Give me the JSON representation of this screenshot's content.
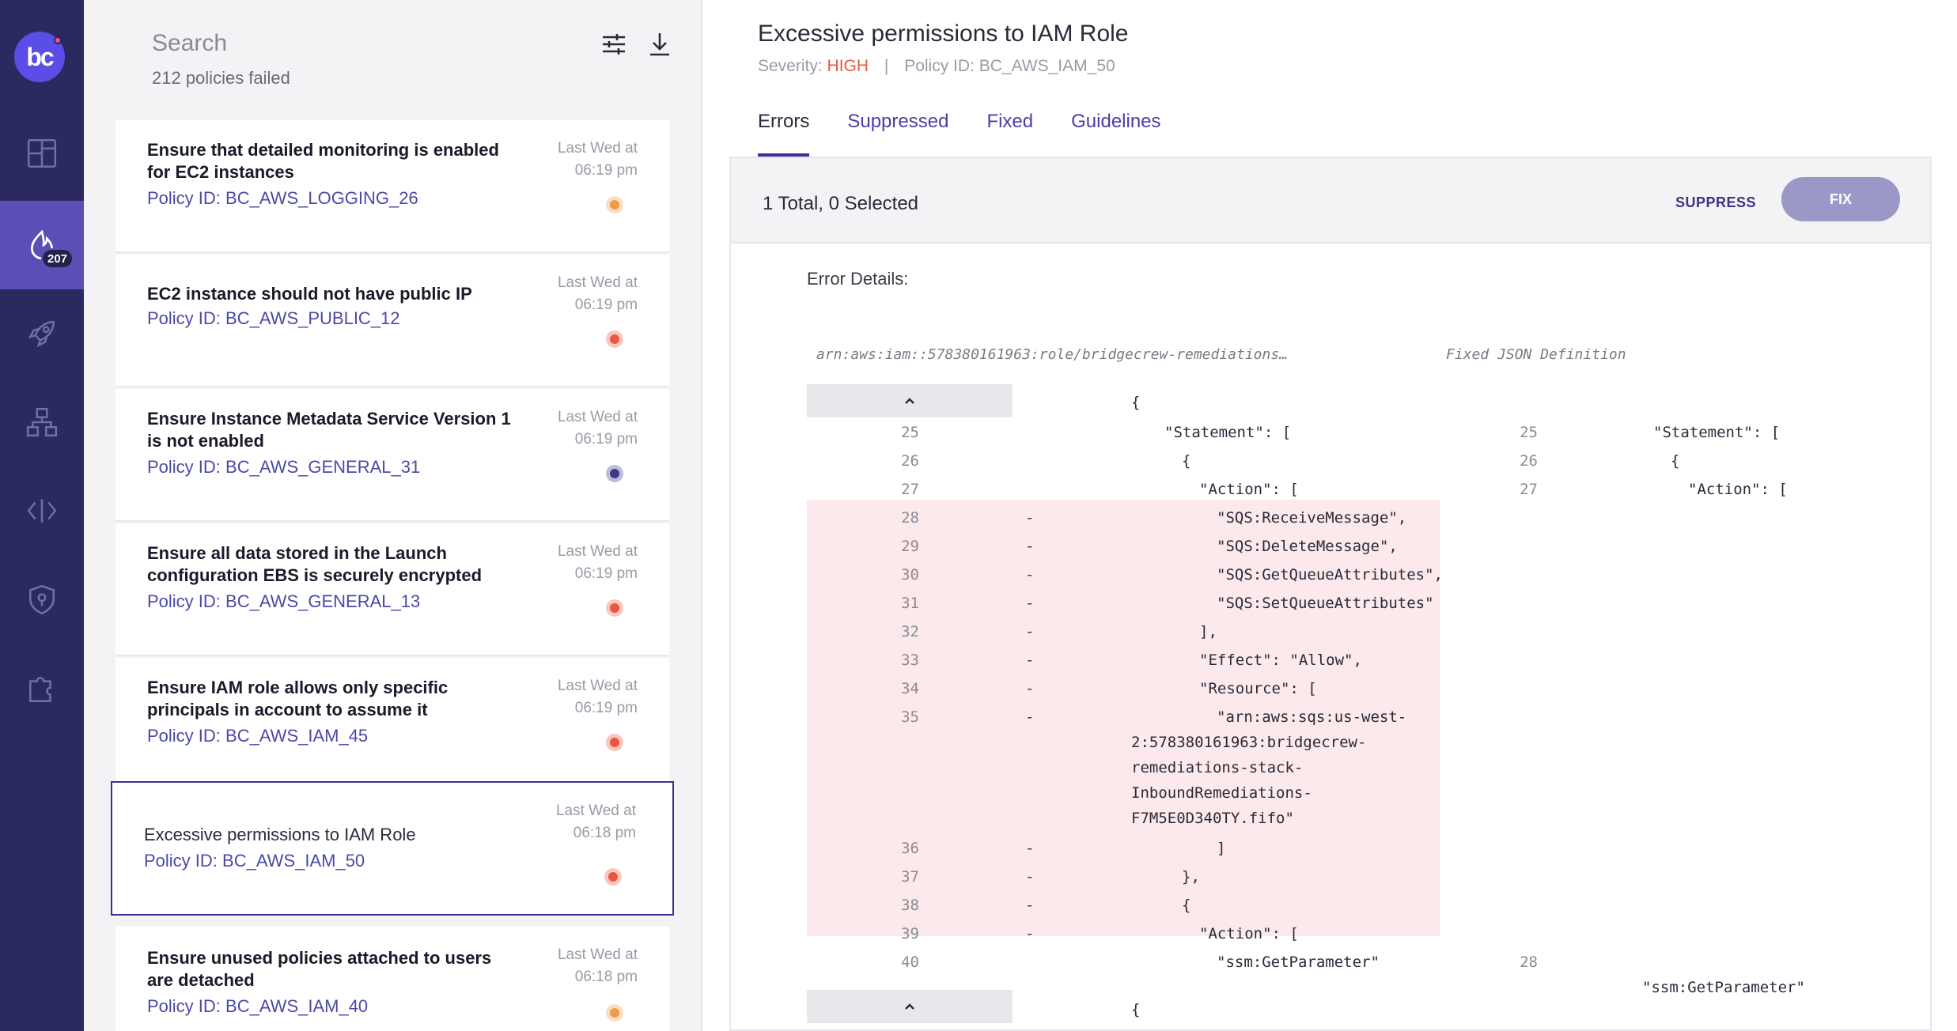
{
  "sidebar": {
    "logo_text": "bc",
    "badge": "207",
    "items": [
      {
        "name": "dashboard-icon"
      },
      {
        "name": "incidents-icon",
        "active": true
      },
      {
        "name": "rocket-icon"
      },
      {
        "name": "hierarchy-icon"
      },
      {
        "name": "code-icon"
      },
      {
        "name": "shield-icon"
      },
      {
        "name": "puzzle-icon"
      }
    ]
  },
  "list": {
    "search_placeholder": "Search",
    "count": "212 policies failed",
    "cards": [
      {
        "title": "Ensure that detailed monitoring is enabled for EC2 instances",
        "policy": "Policy ID: BC_AWS_LOGGING_26",
        "time1": "Last Wed at",
        "time2": "06:19 pm",
        "severity_color": "#f19a4b"
      },
      {
        "title": "EC2 instance should not have public IP",
        "policy": "Policy ID: BC_AWS_PUBLIC_12",
        "time1": "Last Wed at",
        "time2": "06:19 pm",
        "severity_color": "#e9573f"
      },
      {
        "title": "Ensure Instance Metadata Service Version 1 is not enabled",
        "policy": "Policy ID: BC_AWS_GENERAL_31",
        "time1": "Last Wed at",
        "time2": "06:19 pm",
        "severity_color": "#3b3a8c"
      },
      {
        "title": "Ensure all data stored in the Launch configuration EBS is securely encrypted",
        "policy": "Policy ID: BC_AWS_GENERAL_13",
        "time1": "Last Wed at",
        "time2": "06:19 pm",
        "severity_color": "#e9573f"
      },
      {
        "title": "Ensure IAM role allows only specific principals in account to assume it",
        "policy": "Policy ID: BC_AWS_IAM_45",
        "time1": "Last Wed at",
        "time2": "06:19 pm",
        "severity_color": "#e9573f"
      },
      {
        "title": "Excessive permissions to IAM Role",
        "policy": "Policy ID: BC_AWS_IAM_50",
        "time1": "Last Wed at",
        "time2": "06:18 pm",
        "severity_color": "#e9573f",
        "selected": true
      },
      {
        "title": "Ensure unused policies attached to users are detached",
        "policy": "Policy ID: BC_AWS_IAM_40",
        "time1": "Last Wed at",
        "time2": "06:18 pm",
        "severity_color": "#f19a4b"
      }
    ]
  },
  "detail": {
    "title": "Excessive permissions to IAM Role",
    "severity_label": "Severity:",
    "severity_value": "HIGH",
    "policy_id": "Policy ID: BC_AWS_IAM_50",
    "tabs": [
      "Errors",
      "Suppressed",
      "Fixed",
      "Guidelines"
    ],
    "total_label": "1 Total, 0 Selected",
    "suppress_label": "SUPPRESS",
    "fix_label": "FIX",
    "error_details_label": "Error Details:",
    "left_file": "arn:aws:iam::578380161963:role/bridgecrew-remediations…",
    "right_file": "Fixed JSON Definition",
    "left_lines": [
      {
        "n": "",
        "text": "{"
      },
      {
        "n": "25",
        "text": "\"Statement\": ["
      },
      {
        "n": "26",
        "text": "{"
      },
      {
        "n": "27",
        "text": "\"Action\": ["
      },
      {
        "n": "28",
        "text": "\"SQS:ReceiveMessage\","
      },
      {
        "n": "29",
        "text": "\"SQS:DeleteMessage\","
      },
      {
        "n": "30",
        "text": "\"SQS:GetQueueAttributes\","
      },
      {
        "n": "31",
        "text": "\"SQS:SetQueueAttributes\""
      },
      {
        "n": "32",
        "text": "],"
      },
      {
        "n": "33",
        "text": "\"Effect\": \"Allow\","
      },
      {
        "n": "34",
        "text": "\"Resource\": ["
      },
      {
        "n": "35",
        "text": "\"arn:aws:sqs:us-west-"
      },
      {
        "n": "",
        "text": "2:578380161963:bridgecrew-"
      },
      {
        "n": "",
        "text": "remediations-stack-"
      },
      {
        "n": "",
        "text": "InboundRemediations-"
      },
      {
        "n": "",
        "text": "F7M5E0D340TY.fifo\""
      },
      {
        "n": "36",
        "text": "]"
      },
      {
        "n": "37",
        "text": "},"
      },
      {
        "n": "38",
        "text": "{"
      },
      {
        "n": "39",
        "text": "\"Action\": ["
      },
      {
        "n": "40",
        "text": "\"ssm:GetParameter\""
      },
      {
        "n": "",
        "text": "{"
      }
    ],
    "right_lines": [
      {
        "n": "25",
        "text": "\"Statement\": ["
      },
      {
        "n": "26",
        "text": "{"
      },
      {
        "n": "27",
        "text": "\"Action\": ["
      },
      {
        "n": "28",
        "text": "\"ssm:GetParameter\""
      }
    ],
    "minus": "-"
  }
}
